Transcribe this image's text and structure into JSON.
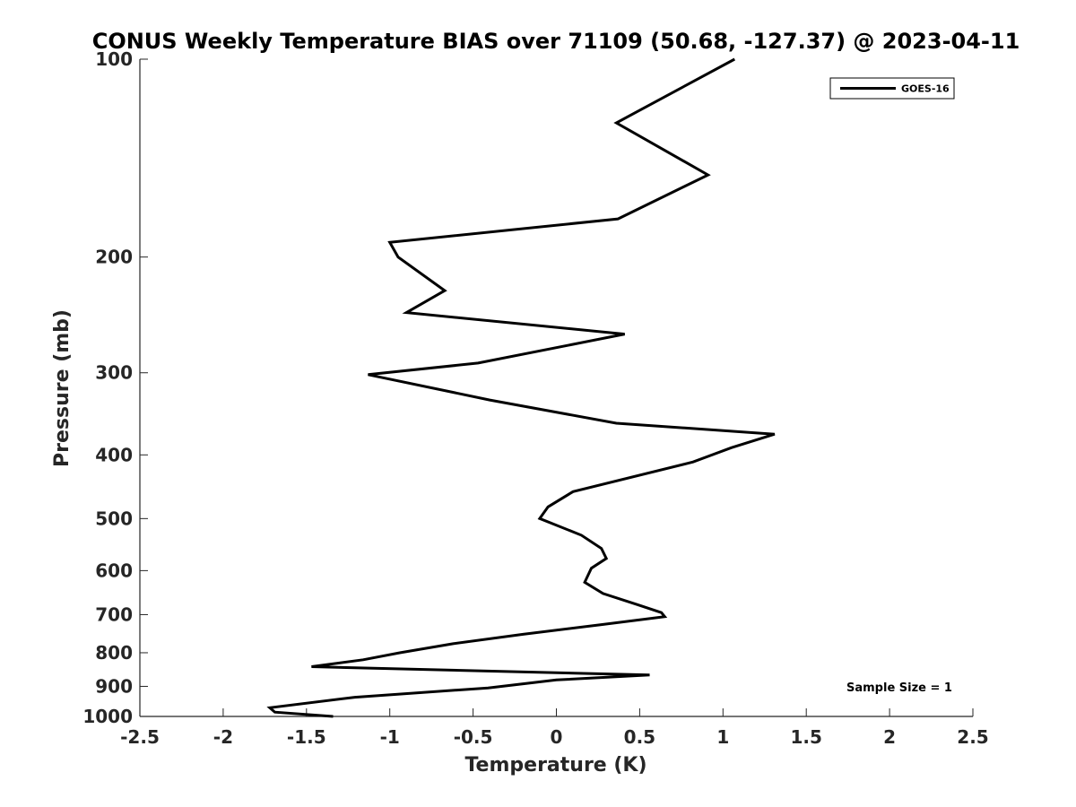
{
  "chart_data": {
    "type": "line",
    "title": "CONUS Weekly Temperature BIAS over 71109 (50.68, -127.37) @ 2023-04-11",
    "xlabel": "Temperature (K)",
    "ylabel": "Pressure (mb)",
    "xlim": [
      -2.5,
      2.5
    ],
    "ylim": [
      100,
      1000
    ],
    "yscale": "log",
    "y_reversed": true,
    "x_ticks": [
      "-2.5",
      "-2",
      "-1.5",
      "-1",
      "-0.5",
      "0",
      "0.5",
      "1",
      "1.5",
      "2",
      "2.5"
    ],
    "y_ticks": [
      "100",
      "200",
      "300",
      "400",
      "500",
      "600",
      "700",
      "800",
      "900",
      "1000"
    ],
    "grid": false,
    "legend_position": "top-right",
    "annotation": "Sample Size = 1",
    "series": [
      {
        "name": "GOES-16",
        "color": "#000000",
        "x": [
          1.07,
          0.36,
          0.91,
          0.37,
          -1.0,
          -0.95,
          -0.67,
          -0.9,
          0.41,
          -0.47,
          -1.13,
          -0.4,
          0.36,
          1.31,
          1.05,
          0.82,
          0.1,
          -0.05,
          -0.1,
          0.15,
          0.27,
          0.3,
          0.21,
          0.17,
          0.28,
          0.48,
          0.63,
          0.65,
          0.27,
          -0.2,
          -0.62,
          -0.94,
          -1.16,
          -1.47,
          0.56,
          0.0,
          -0.41,
          -1.21,
          -1.72,
          -1.69,
          -1.34
        ],
        "y": [
          100,
          125,
          150,
          175,
          190,
          200,
          225,
          243,
          262,
          290,
          302,
          330,
          358,
          372,
          390,
          410,
          455,
          480,
          500,
          530,
          555,
          575,
          595,
          625,
          650,
          675,
          695,
          705,
          725,
          750,
          775,
          800,
          820,
          840,
          865,
          880,
          905,
          935,
          970,
          985,
          1000
        ]
      }
    ]
  }
}
